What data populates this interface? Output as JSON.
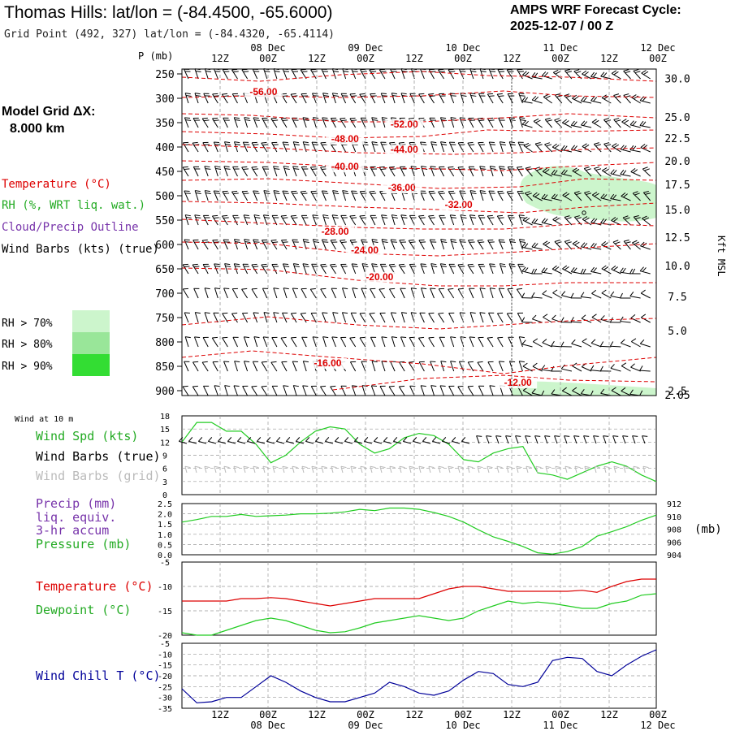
{
  "header": {
    "station": "Thomas Hills:  lat/lon = (-84.4500, -65.6000)",
    "grid_point": "Grid Point (492, 327) lat/lon = (-84.4320, -65.4114)",
    "cycle_label": "AMPS WRF Forecast Cycle:",
    "cycle_time": "2025-12-07 / 00  Z"
  },
  "left_panel": {
    "model_grid": "Model Grid ΔX:",
    "grid_spacing": "8.000 km",
    "temperature_label": "Temperature (°C)",
    "rh_label": "RH (%, WRT liq. wat.)",
    "cloud_label": "Cloud/Precip Outline",
    "wind_label": "Wind Barbs (kts) (true)",
    "rh_legend": [
      {
        "label": "RH > 70%",
        "color": "#ccf5cc"
      },
      {
        "label": "RH > 80%",
        "color": "#99e699"
      },
      {
        "label": "RH > 90%",
        "color": "#33dd33"
      }
    ]
  },
  "colors": {
    "temperature": "#dd0000",
    "green": "#22cc22",
    "purple": "#7733aa",
    "navy": "#000099",
    "grid_barb": "#bbbbbb"
  },
  "chart_data": [
    {
      "type": "table",
      "name": "time-axis",
      "top_ticks": [
        "12Z",
        "00Z",
        "12Z",
        "00Z",
        "12Z",
        "00Z",
        "12Z",
        "00Z",
        "12Z",
        "00Z"
      ],
      "top_dates": [
        "08 Dec",
        "09 Dec",
        "10 Dec",
        "11 Dec",
        "12 Dec"
      ],
      "bottom_ticks": [
        "12Z",
        "00Z",
        "12Z",
        "00Z",
        "12Z",
        "00Z",
        "12Z",
        "00Z",
        "12Z",
        "00Z"
      ],
      "bottom_dates": [
        "08 Dec",
        "09 Dec",
        "10 Dec",
        "11 Dec",
        "12 Dec"
      ]
    },
    {
      "type": "heatmap",
      "name": "cross-section",
      "ylabel": "P (mb)",
      "pressure_levels": [
        250,
        300,
        350,
        400,
        450,
        500,
        550,
        600,
        650,
        700,
        750,
        800,
        850,
        900
      ],
      "ylim": [
        240,
        910
      ],
      "right_axis_label": "Kft MSL",
      "right_axis_ticks": [
        {
          "label": "30.0",
          "p": 259
        },
        {
          "label": "25.0",
          "p": 338
        },
        {
          "label": "22.5",
          "p": 382
        },
        {
          "label": "20.0",
          "p": 428
        },
        {
          "label": "17.5",
          "p": 477
        },
        {
          "label": "15.0",
          "p": 528
        },
        {
          "label": "12.5",
          "p": 585
        },
        {
          "label": "10.0",
          "p": 643
        },
        {
          "label": "7.5",
          "p": 707
        },
        {
          "label": "5.0",
          "p": 777
        },
        {
          "label": "2.5",
          "p": 900
        },
        {
          "label": "2.05",
          "p": 908
        }
      ],
      "temperature_labels": [
        {
          "text": "-56.00",
          "t": 16.5,
          "p": 293
        },
        {
          "text": "-52.00",
          "t": 45,
          "p": 360
        },
        {
          "text": "-48.00",
          "t": 33,
          "p": 390
        },
        {
          "text": "-44.00",
          "t": 45,
          "p": 412
        },
        {
          "text": "-40.00",
          "t": 33,
          "p": 447
        },
        {
          "text": "-36.00",
          "t": 44.5,
          "p": 490
        },
        {
          "text": "-32.00",
          "t": 56,
          "p": 525
        },
        {
          "text": "-28.00",
          "t": 31,
          "p": 580
        },
        {
          "text": "-24.00",
          "t": 37,
          "p": 618
        },
        {
          "text": "-20.00",
          "t": 40,
          "p": 673
        },
        {
          "text": "-16.00",
          "t": 29.5,
          "p": 850
        },
        {
          "text": "-12.00",
          "t": 68,
          "p": 890
        }
      ],
      "rh_region": "RH > 70% patch at 450-560 mb near 11 Dec 00Z-12Z"
    },
    {
      "type": "line",
      "name": "wind-10m",
      "title": "Wind at 10 m",
      "ylabel": "Wind Spd (kts)",
      "legend": [
        "Wind Spd (kts)",
        "Wind Barbs (true)",
        "Wind Barbs (grid)"
      ],
      "ylim": [
        0,
        18
      ],
      "yticks": [
        0,
        3,
        6,
        9,
        12,
        15,
        18
      ],
      "x": [
        0,
        3,
        6,
        9,
        12,
        15,
        18,
        21,
        24,
        27,
        30,
        33,
        36,
        39,
        42,
        45,
        48,
        51,
        54,
        57,
        60,
        63,
        66,
        69,
        72,
        75,
        78,
        81,
        84,
        87,
        90,
        93,
        96
      ],
      "values": [
        12,
        16.5,
        16.5,
        14.5,
        14.5,
        11.5,
        7.3,
        9,
        12,
        14.5,
        15.5,
        15,
        11.5,
        9.5,
        10.5,
        13,
        14,
        13.5,
        11.5,
        8,
        7.5,
        9.5,
        10.5,
        11,
        5,
        4.5,
        3.5,
        5,
        6.5,
        7.5,
        6.5,
        4.5,
        3
      ]
    },
    {
      "type": "line",
      "name": "precip-pressure",
      "ylabel": "Precip (mm) liq. equiv. 3-hr accum",
      "right_label": "Pressure (mb)",
      "ylim": [
        0,
        2.5
      ],
      "yticks": [
        "0.0",
        "0.5",
        "1.0",
        "1.5",
        "2.0",
        "2.5"
      ],
      "right_ylim": [
        904,
        912
      ],
      "right_yticks": [
        "904",
        "906",
        "908",
        "910",
        "912"
      ],
      "precip": "0.0 throughout",
      "x": [
        0,
        3,
        6,
        9,
        12,
        15,
        18,
        21,
        24,
        27,
        30,
        33,
        36,
        39,
        42,
        45,
        48,
        51,
        54,
        57,
        60,
        63,
        66,
        69,
        72,
        75,
        78,
        81,
        84,
        87,
        90,
        93,
        96
      ],
      "pressure": [
        909.1,
        909.5,
        910.0,
        910.0,
        910.3,
        910.0,
        910.1,
        910.2,
        910.4,
        910.4,
        910.5,
        910.7,
        911.1,
        910.9,
        911.3,
        911.3,
        911.1,
        910.6,
        910.0,
        909.1,
        907.9,
        906.8,
        906.1,
        905.3,
        904.3,
        904.1,
        904.5,
        905.3,
        906.9,
        907.6,
        908.4,
        909.4,
        910.2
      ]
    },
    {
      "type": "line",
      "name": "temp-dewpoint",
      "series_names": [
        "Temperature (°C)",
        "Dewpoint (°C)"
      ],
      "ylim": [
        -20,
        -5
      ],
      "yticks": [
        "-5",
        "-10",
        "-15",
        "-20"
      ],
      "x": [
        0,
        3,
        6,
        9,
        12,
        15,
        18,
        21,
        24,
        27,
        30,
        33,
        36,
        39,
        42,
        45,
        48,
        51,
        54,
        57,
        60,
        63,
        66,
        69,
        72,
        75,
        78,
        81,
        84,
        87,
        90,
        93,
        96
      ],
      "temperature": [
        -13.0,
        -13.0,
        -13.0,
        -13.0,
        -12.5,
        -12.5,
        -12.3,
        -12.5,
        -13.0,
        -13.5,
        -14.0,
        -13.5,
        -13.0,
        -12.5,
        -12.5,
        -12.5,
        -12.5,
        -11.5,
        -10.5,
        -10.0,
        -10.0,
        -10.5,
        -11.0,
        -11.0,
        -11.0,
        -11.0,
        -11.0,
        -10.8,
        -11.2,
        -10.0,
        -9.0,
        -8.5,
        -8.5
      ],
      "dewpoint": [
        -19.5,
        -20.0,
        -20.0,
        -19.0,
        -18.0,
        -17.0,
        -16.5,
        -17.0,
        -18.0,
        -19.0,
        -19.5,
        -19.3,
        -18.5,
        -17.5,
        -17.0,
        -16.5,
        -16.0,
        -16.5,
        -17.0,
        -16.5,
        -15.0,
        -14.0,
        -13.0,
        -13.5,
        -13.2,
        -13.5,
        -14.0,
        -14.5,
        -14.5,
        -13.5,
        -13.0,
        -11.8,
        -11.5
      ]
    },
    {
      "type": "line",
      "name": "wind-chill",
      "ylabel": "Wind Chill T (°C)",
      "ylim": [
        -35,
        -5
      ],
      "yticks": [
        "-5",
        "-10",
        "-15",
        "-20",
        "-25",
        "-30",
        "-35"
      ],
      "x": [
        0,
        3,
        6,
        9,
        12,
        15,
        18,
        21,
        24,
        27,
        30,
        33,
        36,
        39,
        42,
        45,
        48,
        51,
        54,
        57,
        60,
        63,
        66,
        69,
        72,
        75,
        78,
        81,
        84,
        87,
        90,
        93,
        96
      ],
      "values": [
        -26,
        -32.5,
        -32,
        -30,
        -30,
        -25,
        -20,
        -23,
        -27,
        -30,
        -32,
        -32,
        -30,
        -28,
        -23,
        -25,
        -28,
        -29,
        -27,
        -22,
        -18,
        -19,
        -24,
        -25,
        -23,
        -13,
        -11.5,
        -12,
        -18,
        -20,
        -15,
        -11,
        -8
      ]
    }
  ],
  "panel_labels": {
    "wind_title": "Wind at 10 m",
    "wind_spd": "Wind Spd (kts)",
    "wind_barbs_true": "Wind Barbs (true)",
    "wind_barbs_grid": "Wind Barbs (grid)",
    "precip_l1": "Precip (mm)",
    "precip_l2": "liq. equiv.",
    "precip_l3": "3-hr accum",
    "pressure": "Pressure (mb)",
    "pressure_unit": "(mb)",
    "temperature": "Temperature (°C)",
    "dewpoint": "Dewpoint (°C)",
    "wind_chill": "Wind Chill T (°C)"
  }
}
